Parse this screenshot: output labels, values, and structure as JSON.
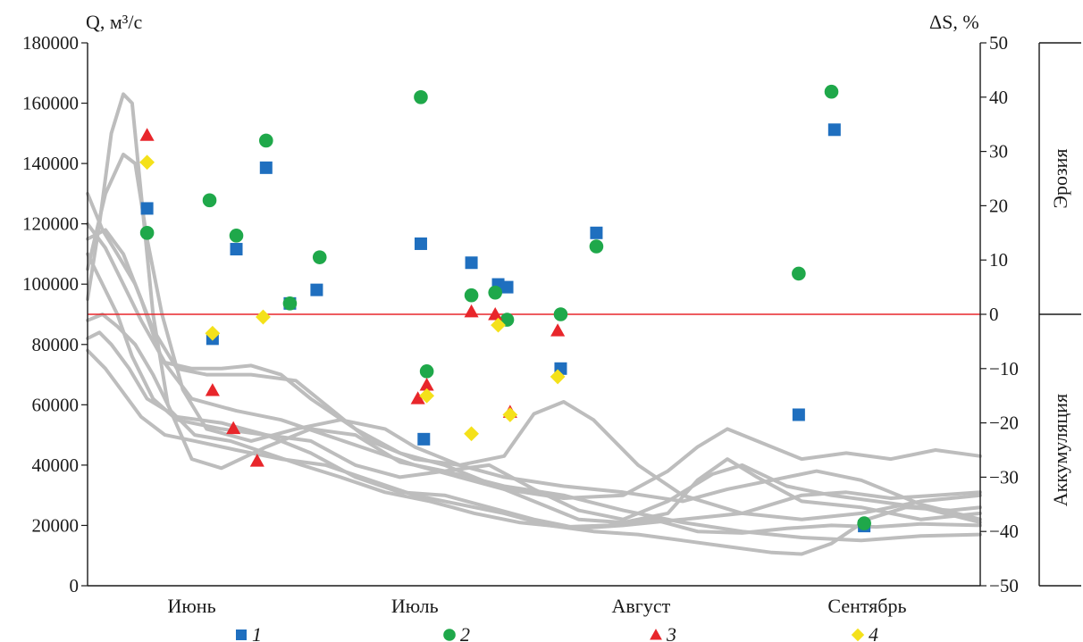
{
  "chart_data": {
    "type": "scatter",
    "title": "",
    "ylabel_left": "Q, м³/с",
    "ylabel_right": "ΔS, %",
    "ylim_left": [
      0,
      180000
    ],
    "left_ticks": [
      "0",
      "20000",
      "40000",
      "60000",
      "80000",
      "100000",
      "120000",
      "140000",
      "160000",
      "180000"
    ],
    "ylim_right": [
      -50,
      50
    ],
    "right_ticks": [
      "−50",
      "−40",
      "−30",
      "−20",
      "−10",
      "0",
      "10",
      "20",
      "30",
      "40",
      "50"
    ],
    "xlim": [
      0,
      300
    ],
    "months": [
      {
        "label": "Июнь",
        "x": 35
      },
      {
        "label": "Июль",
        "x": 110
      },
      {
        "label": "Август",
        "x": 186
      },
      {
        "label": "Сентябрь",
        "x": 262
      }
    ],
    "zero_line_color": "#e8262b",
    "zones": [
      {
        "label": "Эрозия",
        "from": 0,
        "to": 50
      },
      {
        "label": "Аккумуляция",
        "from": -50,
        "to": 0
      }
    ],
    "legend_position": "bottom",
    "series": [
      {
        "name": "1",
        "marker": "square",
        "color": "#1f6fbf",
        "points": [
          [
            20,
            19.5
          ],
          [
            42,
            -4.5
          ],
          [
            50,
            12
          ],
          [
            60,
            27
          ],
          [
            68,
            2
          ],
          [
            77,
            4.5
          ],
          [
            112,
            13
          ],
          [
            113,
            -23
          ],
          [
            129,
            9.5
          ],
          [
            138,
            5.5
          ],
          [
            141,
            5
          ],
          [
            159,
            -10
          ],
          [
            171,
            15
          ],
          [
            239,
            -18.5
          ],
          [
            251,
            34
          ],
          [
            261,
            -39
          ]
        ]
      },
      {
        "name": "2",
        "marker": "circle",
        "color": "#1fa84a",
        "points": [
          [
            20,
            15
          ],
          [
            41,
            21
          ],
          [
            50,
            14.5
          ],
          [
            60,
            32
          ],
          [
            68,
            2
          ],
          [
            78,
            10.5
          ],
          [
            112,
            40
          ],
          [
            114,
            -10.5
          ],
          [
            129,
            3.5
          ],
          [
            137,
            4
          ],
          [
            141,
            -1
          ],
          [
            159,
            0
          ],
          [
            171,
            12.5
          ],
          [
            239,
            7.5
          ],
          [
            250,
            41
          ],
          [
            261,
            -38.5
          ]
        ]
      },
      {
        "name": "3",
        "marker": "triangle",
        "color": "#e8262b",
        "points": [
          [
            20,
            33
          ],
          [
            42,
            -14
          ],
          [
            49,
            -21
          ],
          [
            57,
            -27
          ],
          [
            111,
            -15.5
          ],
          [
            114,
            -13
          ],
          [
            129,
            0.5
          ],
          [
            137,
            0
          ],
          [
            142,
            -18
          ],
          [
            158,
            -3
          ]
        ]
      },
      {
        "name": "4",
        "marker": "diamond",
        "color": "#f4e11a",
        "points": [
          [
            20,
            28
          ],
          [
            42,
            -3.5
          ],
          [
            59,
            -0.5
          ],
          [
            114,
            -15
          ],
          [
            129,
            -22
          ],
          [
            138,
            -2
          ],
          [
            142,
            -18.5
          ],
          [
            158,
            -11.5
          ]
        ]
      }
    ],
    "hydrograph_series": {
      "color": "#bdbdbd",
      "curves": [
        [
          [
            0,
            95000
          ],
          [
            4,
            120000
          ],
          [
            8,
            150000
          ],
          [
            12,
            163000
          ],
          [
            15,
            160000
          ],
          [
            18,
            130000
          ],
          [
            22,
            90000
          ],
          [
            27,
            60000
          ],
          [
            35,
            42000
          ],
          [
            45,
            39000
          ],
          [
            60,
            46000
          ],
          [
            75,
            52000
          ],
          [
            90,
            50000
          ],
          [
            105,
            41000
          ],
          [
            120,
            38000
          ],
          [
            140,
            33000
          ],
          [
            160,
            30000
          ],
          [
            180,
            25000
          ],
          [
            200,
            21000
          ],
          [
            220,
            18000
          ],
          [
            240,
            16000
          ],
          [
            260,
            15000
          ],
          [
            280,
            16500
          ],
          [
            300,
            17000
          ]
        ],
        [
          [
            0,
            105000
          ],
          [
            6,
            130000
          ],
          [
            12,
            143000
          ],
          [
            16,
            140000
          ],
          [
            20,
            115000
          ],
          [
            25,
            90000
          ],
          [
            32,
            65000
          ],
          [
            40,
            52000
          ],
          [
            55,
            48000
          ],
          [
            70,
            52000
          ],
          [
            85,
            55000
          ],
          [
            100,
            52000
          ],
          [
            110,
            46000
          ],
          [
            125,
            40000
          ],
          [
            140,
            43000
          ],
          [
            150,
            57000
          ],
          [
            160,
            61000
          ],
          [
            170,
            55000
          ],
          [
            185,
            40000
          ],
          [
            200,
            30000
          ],
          [
            220,
            24000
          ],
          [
            240,
            22000
          ],
          [
            260,
            24000
          ],
          [
            280,
            28000
          ],
          [
            300,
            30000
          ]
        ],
        [
          [
            0,
            115000
          ],
          [
            6,
            118000
          ],
          [
            12,
            110000
          ],
          [
            18,
            95000
          ],
          [
            25,
            75000
          ],
          [
            35,
            62000
          ],
          [
            50,
            58000
          ],
          [
            65,
            55000
          ],
          [
            80,
            50000
          ],
          [
            95,
            45000
          ],
          [
            110,
            40000
          ],
          [
            125,
            36000
          ],
          [
            140,
            32000
          ],
          [
            160,
            29000
          ],
          [
            180,
            30000
          ],
          [
            195,
            38000
          ],
          [
            205,
            46000
          ],
          [
            215,
            52000
          ],
          [
            225,
            48000
          ],
          [
            240,
            42000
          ],
          [
            255,
            44000
          ],
          [
            270,
            42000
          ],
          [
            285,
            45000
          ],
          [
            300,
            43000
          ]
        ],
        [
          [
            0,
            130000
          ],
          [
            5,
            118000
          ],
          [
            10,
            110000
          ],
          [
            16,
            100000
          ],
          [
            22,
            85000
          ],
          [
            30,
            72000
          ],
          [
            40,
            70000
          ],
          [
            55,
            70000
          ],
          [
            70,
            68000
          ],
          [
            80,
            60000
          ],
          [
            95,
            48000
          ],
          [
            110,
            42000
          ],
          [
            125,
            40000
          ],
          [
            140,
            36000
          ],
          [
            160,
            33000
          ],
          [
            180,
            31000
          ],
          [
            200,
            28000
          ],
          [
            215,
            32000
          ],
          [
            230,
            35000
          ],
          [
            245,
            38000
          ],
          [
            260,
            35000
          ],
          [
            280,
            27000
          ],
          [
            300,
            22000
          ]
        ],
        [
          [
            0,
            120000
          ],
          [
            6,
            112000
          ],
          [
            12,
            100000
          ],
          [
            18,
            88000
          ],
          [
            26,
            74000
          ],
          [
            35,
            72000
          ],
          [
            45,
            72000
          ],
          [
            55,
            73000
          ],
          [
            65,
            70000
          ],
          [
            75,
            62000
          ],
          [
            90,
            52000
          ],
          [
            105,
            44000
          ],
          [
            120,
            40000
          ],
          [
            135,
            34000
          ],
          [
            150,
            28000
          ],
          [
            165,
            22000
          ],
          [
            180,
            21000
          ],
          [
            195,
            24000
          ],
          [
            205,
            35000
          ],
          [
            215,
            42000
          ],
          [
            225,
            36000
          ],
          [
            240,
            28000
          ],
          [
            260,
            26000
          ],
          [
            280,
            22000
          ],
          [
            300,
            24000
          ]
        ],
        [
          [
            0,
            110000
          ],
          [
            5,
            100000
          ],
          [
            10,
            90000
          ],
          [
            15,
            76000
          ],
          [
            22,
            62000
          ],
          [
            30,
            55000
          ],
          [
            45,
            52000
          ],
          [
            60,
            50000
          ],
          [
            75,
            48000
          ],
          [
            90,
            40000
          ],
          [
            105,
            36000
          ],
          [
            120,
            38000
          ],
          [
            135,
            40000
          ],
          [
            150,
            32000
          ],
          [
            165,
            25000
          ],
          [
            180,
            22000
          ],
          [
            195,
            28000
          ],
          [
            210,
            37000
          ],
          [
            220,
            40000
          ],
          [
            235,
            33000
          ],
          [
            250,
            30000
          ],
          [
            265,
            28000
          ],
          [
            280,
            26000
          ],
          [
            300,
            21000
          ]
        ],
        [
          [
            0,
            82000
          ],
          [
            4,
            84000
          ],
          [
            8,
            80000
          ],
          [
            14,
            72000
          ],
          [
            20,
            62000
          ],
          [
            30,
            56000
          ],
          [
            45,
            54000
          ],
          [
            60,
            50000
          ],
          [
            75,
            44000
          ],
          [
            90,
            36000
          ],
          [
            105,
            31000
          ],
          [
            120,
            30000
          ],
          [
            135,
            26000
          ],
          [
            150,
            22000
          ],
          [
            165,
            19000
          ],
          [
            180,
            20000
          ],
          [
            200,
            22000
          ],
          [
            220,
            24000
          ],
          [
            240,
            30000
          ],
          [
            255,
            31000
          ],
          [
            270,
            29000
          ],
          [
            285,
            30000
          ],
          [
            300,
            31000
          ]
        ],
        [
          [
            0,
            78000
          ],
          [
            6,
            72000
          ],
          [
            12,
            64000
          ],
          [
            18,
            56000
          ],
          [
            26,
            50000
          ],
          [
            36,
            48000
          ],
          [
            50,
            45000
          ],
          [
            65,
            42000
          ],
          [
            80,
            40000
          ],
          [
            95,
            35000
          ],
          [
            110,
            30000
          ],
          [
            125,
            27000
          ],
          [
            140,
            24000
          ],
          [
            155,
            20000
          ],
          [
            170,
            18000
          ],
          [
            185,
            17000
          ],
          [
            200,
            15000
          ],
          [
            215,
            13000
          ],
          [
            230,
            11000
          ],
          [
            240,
            10500
          ],
          [
            250,
            14000
          ],
          [
            262,
            22000
          ],
          [
            275,
            26000
          ],
          [
            290,
            25000
          ],
          [
            300,
            26000
          ]
        ],
        [
          [
            0,
            88000
          ],
          [
            5,
            90000
          ],
          [
            10,
            86000
          ],
          [
            16,
            80000
          ],
          [
            22,
            70000
          ],
          [
            28,
            58000
          ],
          [
            36,
            50000
          ],
          [
            48,
            48000
          ],
          [
            60,
            44000
          ],
          [
            72,
            40000
          ],
          [
            85,
            36000
          ],
          [
            100,
            31000
          ],
          [
            115,
            28000
          ],
          [
            130,
            24000
          ],
          [
            145,
            21000
          ],
          [
            160,
            19500
          ],
          [
            175,
            20000
          ],
          [
            190,
            22000
          ],
          [
            205,
            18000
          ],
          [
            220,
            17500
          ],
          [
            235,
            19000
          ],
          [
            250,
            20000
          ],
          [
            265,
            19500
          ],
          [
            280,
            20500
          ],
          [
            300,
            20000
          ]
        ]
      ]
    }
  },
  "legend": [
    {
      "label": "1",
      "marker": "square",
      "color": "#1f6fbf"
    },
    {
      "label": "2",
      "marker": "circle",
      "color": "#1fa84a"
    },
    {
      "label": "3",
      "marker": "triangle",
      "color": "#e8262b"
    },
    {
      "label": "4",
      "marker": "diamond",
      "color": "#f4e11a"
    }
  ]
}
